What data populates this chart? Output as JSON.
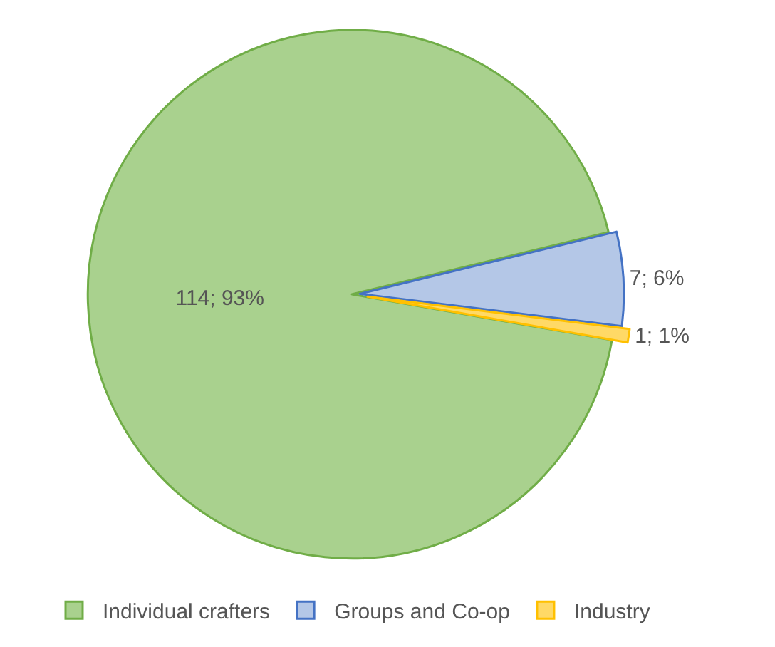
{
  "chart_data": {
    "type": "pie",
    "categories": [
      "Individual crafters",
      "Groups and Co-op",
      "Industry"
    ],
    "values": [
      114,
      7,
      1
    ],
    "colors": [
      "#a9d18e",
      "#b4c7e7",
      "#ffd966"
    ],
    "value_labels": [
      "114; 93%",
      "7; 6%",
      "1; 1%"
    ],
    "legend": "bottom"
  }
}
